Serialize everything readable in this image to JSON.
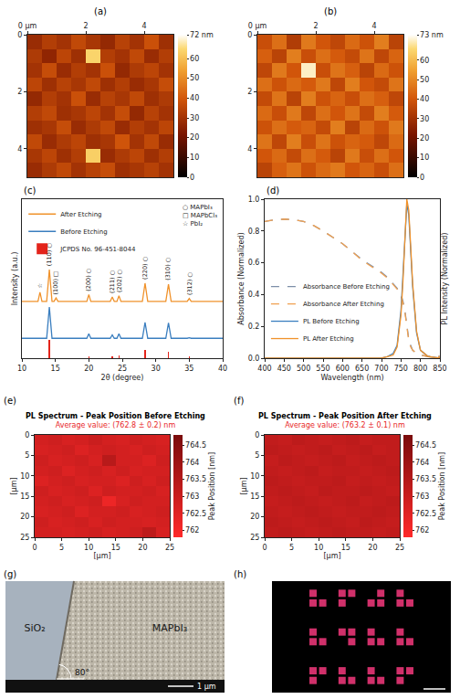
{
  "chart_data": [
    {
      "panel": "(a)",
      "type": "heatmap",
      "color": "hot",
      "xlim": [
        0,
        5
      ],
      "ylim": [
        5,
        0
      ],
      "xticks": [
        {
          "value": 0,
          "label": "0 μm"
        },
        2,
        4
      ],
      "yticks": [
        0,
        2,
        4
      ],
      "zlim": [
        0,
        72
      ],
      "zticks": [
        0,
        10,
        20,
        30,
        40,
        50,
        60,
        {
          "value": 72,
          "label": "72 nm"
        }
      ],
      "cells": [
        [
          28,
          33,
          30,
          36,
          31,
          27,
          34,
          30,
          38,
          29
        ],
        [
          32,
          26,
          35,
          29,
          64,
          33,
          30,
          36,
          28,
          33
        ],
        [
          30,
          37,
          28,
          33,
          30,
          38,
          27,
          32,
          35,
          30
        ],
        [
          35,
          29,
          34,
          31,
          36,
          29,
          33,
          28,
          31,
          37
        ],
        [
          27,
          33,
          30,
          38,
          28,
          34,
          31,
          36,
          29,
          32
        ],
        [
          33,
          36,
          29,
          31,
          35,
          30,
          37,
          27,
          34,
          30
        ],
        [
          29,
          31,
          37,
          28,
          32,
          36,
          28,
          33,
          30,
          35
        ],
        [
          36,
          28,
          32,
          35,
          29,
          31,
          39,
          30,
          36,
          28
        ],
        [
          31,
          35,
          29,
          33,
          63,
          28,
          32,
          35,
          29,
          33
        ],
        [
          28,
          32,
          36,
          30,
          34,
          37,
          29,
          31,
          34,
          30
        ]
      ]
    },
    {
      "panel": "(b)",
      "type": "heatmap",
      "color": "hot",
      "xlim": [
        0,
        5
      ],
      "ylim": [
        5,
        0
      ],
      "xticks": [
        {
          "value": 0,
          "label": "0 μm"
        },
        2,
        4
      ],
      "yticks": [
        0,
        2,
        4
      ],
      "zlim": [
        0,
        73
      ],
      "zticks": [
        0,
        10,
        20,
        30,
        40,
        50,
        60,
        {
          "value": 73,
          "label": "73 nm"
        }
      ],
      "cells": [
        [
          38,
          45,
          33,
          47,
          40,
          36,
          44,
          39,
          48,
          35
        ],
        [
          42,
          35,
          48,
          38,
          45,
          41,
          37,
          46,
          36,
          43
        ],
        [
          36,
          47,
          40,
          70,
          38,
          46,
          42,
          35,
          44,
          39
        ],
        [
          45,
          39,
          44,
          41,
          47,
          36,
          48,
          40,
          37,
          46
        ],
        [
          37,
          46,
          35,
          48,
          39,
          43,
          38,
          45,
          42,
          36
        ],
        [
          44,
          38,
          47,
          36,
          45,
          40,
          46,
          37,
          48,
          41
        ],
        [
          39,
          45,
          41,
          43,
          37,
          48,
          35,
          44,
          39,
          47
        ],
        [
          46,
          36,
          48,
          38,
          46,
          39,
          43,
          41,
          36,
          44
        ],
        [
          40,
          44,
          37,
          45,
          41,
          35,
          47,
          38,
          45,
          40
        ],
        [
          35,
          42,
          46,
          39,
          44,
          47,
          40,
          43,
          38,
          45
        ]
      ]
    },
    {
      "panel": "(c)",
      "type": "line",
      "xlabel": "2θ (degree)",
      "ylabel": "Intensity (a.u.)",
      "xlim": [
        10,
        40
      ],
      "xticks": [
        10,
        15,
        20,
        25,
        30,
        35,
        40
      ],
      "ylim": [
        0,
        2.8
      ],
      "tick_labels": "x",
      "legend": "upper left",
      "x": [
        10,
        12.4,
        12.7,
        13.0,
        13.7,
        14.1,
        14.5,
        14.8,
        15.1,
        15.4,
        19.7,
        20.0,
        20.3,
        23.2,
        23.5,
        23.8,
        24.2,
        24.5,
        24.8,
        28.0,
        28.4,
        28.8,
        31.5,
        31.9,
        32.3,
        34.7,
        35.0,
        35.3,
        40
      ],
      "series": [
        {
          "name": "After Etching",
          "color": "#f0922b",
          "values": [
            1.0,
            1.0,
            1.16,
            1.0,
            1.0,
            1.56,
            1.0,
            1.0,
            1.06,
            1.0,
            1.0,
            1.12,
            1.0,
            1.0,
            1.08,
            1.0,
            1.0,
            1.1,
            1.0,
            1.0,
            1.32,
            1.0,
            1.0,
            1.3,
            1.0,
            1.0,
            1.05,
            1.0,
            1.0
          ]
        },
        {
          "name": "Before Etching",
          "color": "#3a7ebf",
          "values": [
            0.35,
            0.35,
            0.35,
            0.35,
            0.35,
            0.9,
            0.35,
            0.35,
            0.35,
            0.35,
            0.35,
            0.43,
            0.35,
            0.35,
            0.41,
            0.35,
            0.35,
            0.43,
            0.35,
            0.35,
            0.63,
            0.35,
            0.35,
            0.62,
            0.35,
            0.35,
            0.36,
            0.35,
            0.35
          ]
        },
        {
          "name": "JCPDS No. 96-451-8044",
          "color": "#e3241b",
          "type": "bar",
          "x": [
            14.1,
            20.0,
            23.5,
            24.5,
            28.4,
            31.9,
            35.0
          ],
          "values": [
            0.32,
            0.03,
            0.04,
            0.05,
            0.14,
            0.12,
            0.03
          ]
        }
      ],
      "annotations": [
        {
          "x": 12.7,
          "y": 1.16,
          "symbol": "☆"
        },
        {
          "x": 14.1,
          "y": 1.56,
          "text": "(110)",
          "symbol": "○"
        },
        {
          "x": 15.1,
          "y": 1.06,
          "text": "(100)",
          "symbol": "□"
        },
        {
          "x": 20.0,
          "y": 1.12,
          "text": "(200)",
          "symbol": "○"
        },
        {
          "x": 23.5,
          "y": 1.08,
          "text": "(211)",
          "symbol": "○"
        },
        {
          "x": 24.5,
          "y": 1.1,
          "text": "(202)",
          "symbol": "○"
        },
        {
          "x": 28.4,
          "y": 1.32,
          "text": "(220)",
          "symbol": "○"
        },
        {
          "x": 31.9,
          "y": 1.3,
          "text": "(310)",
          "symbol": "○"
        },
        {
          "x": 35.0,
          "y": 1.05,
          "text": "(312)",
          "symbol": "○"
        }
      ],
      "phase_legend": [
        {
          "symbol": "○",
          "label": "MAPbI₃"
        },
        {
          "symbol": "□",
          "label": "MAPbCl₃"
        },
        {
          "symbol": "☆",
          "label": "PbI₂"
        }
      ]
    },
    {
      "panel": "(d)",
      "type": "line",
      "xlabel": "Wavelength (nm)",
      "ylabel": "Absorbance (Normalized)",
      "y2label": "PL Intensity (Normalized)",
      "xlim": [
        400,
        850
      ],
      "xticks": [
        400,
        450,
        500,
        550,
        600,
        650,
        700,
        750,
        800,
        850
      ],
      "ylim": [
        0,
        1
      ],
      "yticks": [
        {
          "value": 0,
          "label": "0.0"
        },
        0.2,
        0.4,
        0.6,
        0.8,
        {
          "value": 1,
          "label": "1.0"
        }
      ],
      "y2lim": [
        0,
        1
      ],
      "legend": "lower left",
      "x": [
        400,
        425,
        450,
        475,
        500,
        525,
        550,
        575,
        600,
        625,
        650,
        675,
        700,
        715,
        730,
        740,
        750,
        755,
        760,
        765,
        770,
        775,
        780,
        790,
        800,
        820,
        850
      ],
      "series": [
        {
          "name": "Absorbance Before Etching",
          "color": "#7d8fa8",
          "line_style": "dash",
          "values": [
            0.86,
            0.87,
            0.875,
            0.87,
            0.86,
            0.835,
            0.8,
            0.76,
            0.72,
            0.67,
            0.62,
            0.58,
            0.54,
            0.51,
            0.47,
            0.44,
            0.4,
            0.36,
            0.3,
            0.21,
            0.12,
            0.08,
            0.05,
            0.03,
            0.02,
            0.01,
            0.01
          ]
        },
        {
          "name": "Absorbance After Etching",
          "color": "#f0a050",
          "line_style": "dash",
          "values": [
            0.86,
            0.87,
            0.875,
            0.87,
            0.86,
            0.835,
            0.8,
            0.76,
            0.72,
            0.67,
            0.615,
            0.575,
            0.535,
            0.505,
            0.465,
            0.435,
            0.39,
            0.35,
            0.29,
            0.2,
            0.11,
            0.07,
            0.05,
            0.03,
            0.02,
            0.01,
            0.01
          ]
        },
        {
          "name": "PL Before Etching",
          "color": "#3a7ebf",
          "line_style": "solid",
          "axis": "y2",
          "values": [
            0,
            0,
            0,
            0,
            0,
            0,
            0,
            0,
            0,
            0,
            0,
            0,
            0,
            0.01,
            0.03,
            0.08,
            0.3,
            0.52,
            0.78,
            0.97,
            0.9,
            0.68,
            0.45,
            0.16,
            0.05,
            0.01,
            0
          ]
        },
        {
          "name": "PL After Etching",
          "color": "#f0922b",
          "line_style": "solid",
          "axis": "y2",
          "values": [
            0,
            0,
            0,
            0,
            0,
            0,
            0,
            0,
            0,
            0,
            0,
            0,
            0,
            0.01,
            0.02,
            0.07,
            0.27,
            0.48,
            0.74,
            1.0,
            0.93,
            0.71,
            0.47,
            0.17,
            0.05,
            0.01,
            0
          ]
        }
      ]
    },
    {
      "panel": "(e)",
      "type": "heatmap",
      "color": "red",
      "title": "PL Spectrum - Peak Position Before Etching",
      "subtitle": "Average value: (762.8 ± 0.2) nm",
      "xlabel": "[μm]",
      "ylabel": "[μm]",
      "z_label": "Peak Position [nm]",
      "xlim": [
        0,
        25
      ],
      "ylim": [
        25,
        0
      ],
      "xticks": [
        0,
        5,
        10,
        15,
        20,
        25
      ],
      "yticks": [
        0,
        5,
        10,
        15,
        20,
        25
      ],
      "zlim": [
        761.8,
        764.8
      ],
      "zticks": [
        762,
        762.5,
        763,
        763.5,
        764,
        764.5
      ],
      "cells": [
        [
          762.8,
          762.9,
          762.7,
          762.8,
          763.0,
          762.8,
          762.7,
          762.9,
          762.8,
          762.7
        ],
        [
          762.7,
          762.8,
          762.9,
          762.6,
          762.8,
          762.9,
          762.8,
          762.7,
          762.9,
          762.8
        ],
        [
          762.9,
          762.7,
          762.8,
          762.9,
          762.7,
          763.4,
          762.8,
          762.8,
          762.6,
          762.9
        ],
        [
          762.8,
          762.9,
          762.6,
          762.8,
          762.9,
          762.7,
          762.9,
          762.7,
          762.8,
          762.8
        ],
        [
          762.6,
          762.8,
          762.9,
          762.7,
          762.8,
          762.8,
          762.6,
          762.9,
          762.7,
          762.9
        ],
        [
          762.9,
          762.7,
          762.8,
          762.9,
          762.6,
          762.9,
          762.8,
          762.8,
          762.9,
          762.7
        ],
        [
          762.8,
          762.9,
          762.7,
          762.8,
          762.9,
          762.2,
          762.7,
          762.9,
          762.8,
          762.8
        ],
        [
          762.7,
          762.8,
          762.9,
          762.6,
          762.8,
          762.8,
          762.9,
          762.7,
          762.8,
          762.9
        ],
        [
          762.9,
          762.7,
          762.8,
          762.9,
          762.7,
          762.9,
          762.8,
          762.8,
          762.7,
          762.8
        ],
        [
          762.8,
          762.8,
          762.7,
          762.8,
          762.9,
          762.7,
          762.8,
          762.9,
          763.3,
          762.7
        ]
      ]
    },
    {
      "panel": "(f)",
      "type": "heatmap",
      "color": "red",
      "title": "PL Spectrum - Peak Position After Etching",
      "subtitle": "Average value: (763.2 ± 0.1) nm",
      "xlabel": "[μm]",
      "ylabel": "[μm]",
      "z_label": "Peak Position [nm]",
      "xlim": [
        0,
        25
      ],
      "ylim": [
        25,
        0
      ],
      "xticks": [
        0,
        5,
        10,
        15,
        20,
        25
      ],
      "yticks": [
        0,
        5,
        10,
        15,
        20,
        25
      ],
      "zlim": [
        761.8,
        764.8
      ],
      "zticks": [
        762,
        762.5,
        763,
        763.5,
        764,
        764.5
      ],
      "cells": [
        [
          763.2,
          763.1,
          763.3,
          763.2,
          763.1,
          763.2,
          763.3,
          763.1,
          763.2,
          763.2
        ],
        [
          763.3,
          763.2,
          763.1,
          763.2,
          763.3,
          763.1,
          763.2,
          763.3,
          763.1,
          763.2
        ],
        [
          763.1,
          763.3,
          763.2,
          763.1,
          763.2,
          763.3,
          763.1,
          763.2,
          763.3,
          763.2
        ],
        [
          763.2,
          763.1,
          763.2,
          763.3,
          763.1,
          763.2,
          763.2,
          763.1,
          763.2,
          763.3
        ],
        [
          763.3,
          763.2,
          763.1,
          763.2,
          763.2,
          763.3,
          763.1,
          763.2,
          763.1,
          763.2
        ],
        [
          763.2,
          763.3,
          763.2,
          763.1,
          763.3,
          763.2,
          763.2,
          763.3,
          763.2,
          763.1
        ],
        [
          763.1,
          763.2,
          763.3,
          763.2,
          763.1,
          763.2,
          763.3,
          763.1,
          763.2,
          763.3
        ],
        [
          763.2,
          763.1,
          763.2,
          763.3,
          763.2,
          763.1,
          763.2,
          763.2,
          763.3,
          763.2
        ],
        [
          763.3,
          763.2,
          763.1,
          763.2,
          763.3,
          763.2,
          763.1,
          763.3,
          763.2,
          763.1
        ],
        [
          763.2,
          763.3,
          763.2,
          763.1,
          763.2,
          763.3,
          763.2,
          763.2,
          763.1,
          763.2
        ]
      ]
    }
  ],
  "images": [
    {
      "panel": "(g)",
      "type": "sem",
      "labels": [
        "SiO₂",
        "MAPbI₃"
      ],
      "angle": {
        "value": 80,
        "label": "80°"
      },
      "scale_bar": "1 μm"
    },
    {
      "panel": "(h)",
      "type": "fluorescence",
      "color": "#d0306a",
      "cells": [
        [
          1,
          0,
          0,
          1,
          1,
          0,
          0,
          1,
          0,
          1,
          0
        ],
        [
          1,
          1,
          0,
          1,
          0,
          0,
          1,
          1,
          0,
          1,
          1
        ],
        [
          0,
          0,
          0,
          0,
          0,
          0,
          0,
          0,
          0,
          0,
          0
        ],
        [
          0,
          0,
          0,
          0,
          0,
          0,
          0,
          0,
          0,
          0,
          0
        ],
        [
          1,
          0,
          0,
          1,
          1,
          0,
          1,
          0,
          0,
          1,
          0
        ],
        [
          1,
          1,
          0,
          0,
          1,
          0,
          1,
          1,
          0,
          1,
          1
        ],
        [
          0,
          0,
          0,
          0,
          0,
          0,
          0,
          0,
          0,
          0,
          0
        ],
        [
          0,
          0,
          0,
          0,
          0,
          0,
          0,
          0,
          0,
          0,
          0
        ],
        [
          1,
          1,
          0,
          1,
          0,
          0,
          1,
          0,
          0,
          1,
          1
        ],
        [
          1,
          0,
          0,
          1,
          1,
          0,
          1,
          1,
          0,
          1,
          0
        ]
      ]
    }
  ]
}
